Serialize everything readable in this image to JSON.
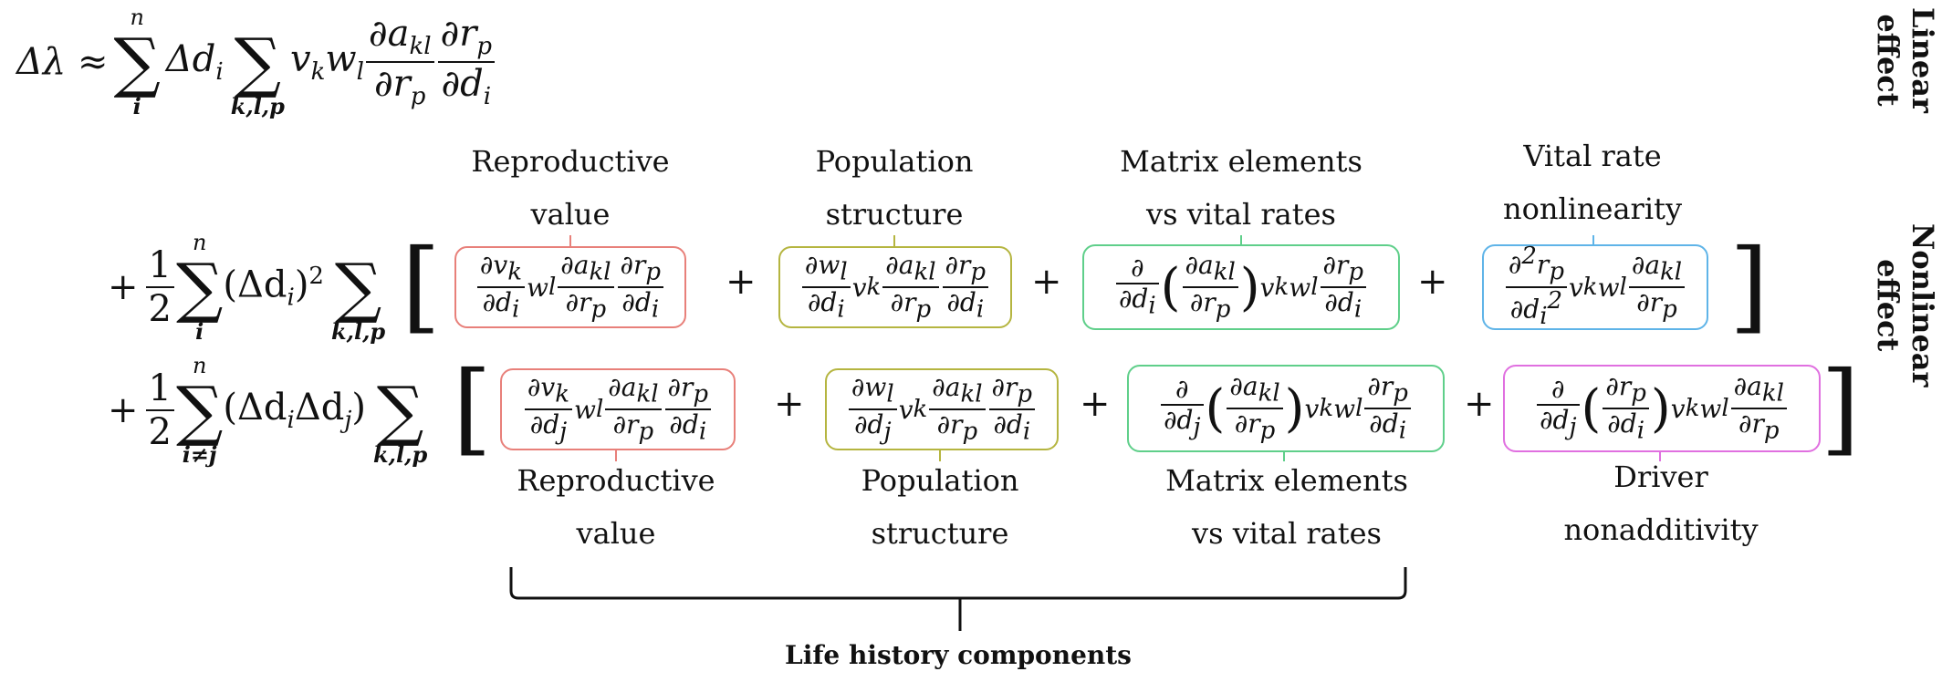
{
  "side_labels": {
    "linear": [
      "Linear",
      "effect"
    ],
    "nonlinear": [
      "Nonlinear",
      "effect"
    ]
  },
  "equation": {
    "line1": {
      "lhs": "Δλ ≈",
      "sum1_top": "n",
      "sum1_bot": "i",
      "delta": "Δd",
      "delta_sub": "i",
      "sum2_bot": "k,l,p",
      "term": "v",
      "term_k": "k",
      "term_w": "w",
      "term_l": "l"
    },
    "line2": {
      "prefix": "+",
      "half_n": "1",
      "half_d": "2",
      "sum_top": "n",
      "sum_bot": "i",
      "factor": "(Δd",
      "factor_sub": "i",
      "factor_end": ")",
      "factor_sup": "2",
      "sum2_bot": "k,l,p"
    },
    "line3": {
      "prefix": "+",
      "half_n": "1",
      "half_d": "2",
      "sum_top": "n",
      "sum_bot": "i≠j",
      "factor": "(Δd",
      "factor_sub": "i",
      "factor_mid": "Δd",
      "factor_sub2": "j",
      "factor_end": ")",
      "sum2_bot": "k,l,p"
    }
  },
  "top_labels": [
    {
      "line1": "Reproductive",
      "line2": "value",
      "color": "#e8807a"
    },
    {
      "line1": "Population",
      "line2": "structure",
      "color": "#b5b540"
    },
    {
      "line1": "Matrix elements",
      "line2": "vs vital rates",
      "color": "#5fcf8a"
    },
    {
      "line1": "Vital rate",
      "line2": "nonlinearity",
      "color": "#5fb4e8"
    }
  ],
  "bottom_labels": [
    {
      "line1": "Reproductive",
      "line2": "value",
      "color": "#e8807a"
    },
    {
      "line1": "Population",
      "line2": "structure",
      "color": "#b5b540"
    },
    {
      "line1": "Matrix elements",
      "line2": "vs vital rates",
      "color": "#5fcf8a"
    },
    {
      "line1": "Driver",
      "line2": "nonadditivity",
      "color": "#e070e0"
    }
  ],
  "plus": "+",
  "brace_label": "Life history components"
}
